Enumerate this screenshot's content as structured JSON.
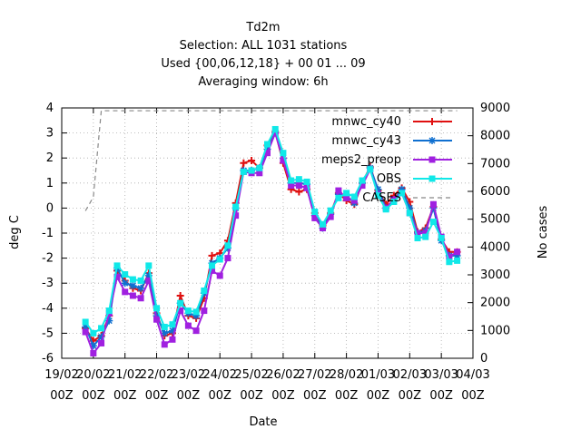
{
  "chart_data": {
    "type": "line",
    "title_lines": [
      "Td2m",
      "Selection: ALL    1031 stations",
      "Used {00,06,12,18} + 00 01 ... 09",
      "Averaging window:  6h"
    ],
    "xlabel": "Date",
    "ylabel": "deg C",
    "y2label": "No cases",
    "ylim": [
      -6,
      4
    ],
    "y2lim": [
      0,
      9000
    ],
    "y_ticks": [
      -6,
      -5,
      -4,
      -3,
      -2,
      -1,
      0,
      1,
      2,
      3,
      4
    ],
    "y2_ticks": [
      0,
      1000,
      2000,
      3000,
      4000,
      5000,
      6000,
      7000,
      8000,
      9000
    ],
    "x_ticks": [
      {
        "day": 0,
        "line1": "19/02",
        "line2": "00Z"
      },
      {
        "day": 1,
        "line1": "20/02",
        "line2": "00Z"
      },
      {
        "day": 2,
        "line1": "21/02",
        "line2": "00Z"
      },
      {
        "day": 3,
        "line1": "22/02",
        "line2": "00Z"
      },
      {
        "day": 4,
        "line1": "23/02",
        "line2": "00Z"
      },
      {
        "day": 5,
        "line1": "24/02",
        "line2": "00Z"
      },
      {
        "day": 6,
        "line1": "25/02",
        "line2": "00Z"
      },
      {
        "day": 7,
        "line1": "26/02",
        "line2": "00Z"
      },
      {
        "day": 8,
        "line1": "27/02",
        "line2": "00Z"
      },
      {
        "day": 9,
        "line1": "28/02",
        "line2": "00Z"
      },
      {
        "day": 10,
        "line1": "01/03",
        "line2": "00Z"
      },
      {
        "day": 11,
        "line1": "02/03",
        "line2": "00Z"
      },
      {
        "day": 12,
        "line1": "03/03",
        "line2": "00Z"
      },
      {
        "day": 13,
        "line1": "04/03",
        "line2": "00Z"
      }
    ],
    "x_day_range": [
      0,
      13
    ],
    "grid": true,
    "legend_position": "top-right",
    "x": [
      0.75,
      1.0,
      1.25,
      1.5,
      1.75,
      2.0,
      2.25,
      2.5,
      2.75,
      3.0,
      3.25,
      3.5,
      3.75,
      4.0,
      4.25,
      4.5,
      4.75,
      5.0,
      5.25,
      5.5,
      5.75,
      6.0,
      6.25,
      6.5,
      6.75,
      7.0,
      7.25,
      7.5,
      7.75,
      8.0,
      8.25,
      8.5,
      8.75,
      9.0,
      9.25,
      9.5,
      9.75,
      10.0,
      10.25,
      10.5,
      10.75,
      11.0,
      11.25,
      11.5,
      11.75,
      12.0,
      12.25,
      12.5
    ],
    "series": [
      {
        "name": "mnwc_cy40",
        "color": "#e01010",
        "marker": "plus",
        "values": [
          -4.8,
          -5.3,
          -5.1,
          -4.3,
          -2.5,
          -2.9,
          -3.2,
          -3.3,
          -2.6,
          -4.2,
          -5.1,
          -5.0,
          -3.5,
          -4.3,
          -4.4,
          -3.6,
          -1.9,
          -1.8,
          -1.3,
          0.2,
          1.8,
          1.9,
          1.6,
          2.5,
          3.05,
          1.8,
          0.75,
          0.65,
          0.75,
          -0.2,
          -0.7,
          -0.2,
          0.6,
          0.3,
          0.15,
          1.0,
          1.65,
          0.7,
          0.15,
          0.5,
          0.8,
          0.25,
          -0.95,
          -0.8,
          0.05,
          -1.25,
          -1.75,
          -1.75
        ]
      },
      {
        "name": "mnwc_cy43",
        "color": "#1070d0",
        "marker": "star",
        "values": [
          -4.75,
          -5.5,
          -5.15,
          -4.5,
          -2.4,
          -3.0,
          -3.1,
          -3.2,
          -2.7,
          -4.3,
          -5.0,
          -4.9,
          -3.8,
          -4.2,
          -4.3,
          -3.4,
          -2.2,
          -2.0,
          -1.6,
          0.0,
          1.5,
          1.5,
          1.6,
          2.35,
          3.0,
          2.0,
          1.0,
          1.0,
          0.95,
          -0.3,
          -0.8,
          -0.25,
          0.55,
          0.5,
          0.2,
          1.0,
          1.6,
          0.75,
          0.0,
          0.3,
          0.75,
          0.0,
          -1.0,
          -0.9,
          0.0,
          -1.3,
          -1.9,
          -1.9
        ]
      },
      {
        "name": "meps2_preop",
        "color": "#a020e0",
        "marker": "square",
        "values": [
          -4.95,
          -5.8,
          -5.4,
          -4.2,
          -2.75,
          -3.35,
          -3.5,
          -3.6,
          -2.9,
          -4.45,
          -5.45,
          -5.25,
          -4.1,
          -4.7,
          -4.9,
          -4.1,
          -2.5,
          -2.7,
          -2.0,
          -0.3,
          1.45,
          1.4,
          1.4,
          2.2,
          3.0,
          1.9,
          0.9,
          0.9,
          0.8,
          -0.4,
          -0.8,
          -0.35,
          0.7,
          0.4,
          0.3,
          0.9,
          1.55,
          0.55,
          0.0,
          0.35,
          0.6,
          -0.2,
          -1.0,
          -1.0,
          0.15,
          -1.15,
          -1.95,
          -1.75
        ]
      },
      {
        "name": "OBS",
        "color": "#10e8e8",
        "marker": "square",
        "values": [
          -4.55,
          -5.0,
          -4.8,
          -4.1,
          -2.3,
          -2.65,
          -2.85,
          -2.9,
          -2.3,
          -4.0,
          -4.75,
          -4.65,
          -3.8,
          -4.1,
          -4.15,
          -3.3,
          -2.3,
          -2.05,
          -1.5,
          0.05,
          1.45,
          1.5,
          1.6,
          2.55,
          3.15,
          2.2,
          1.1,
          1.15,
          1.05,
          -0.15,
          -0.65,
          -0.1,
          0.4,
          0.6,
          0.45,
          1.1,
          1.55,
          0.5,
          -0.05,
          0.25,
          0.6,
          -0.2,
          -1.2,
          -1.15,
          -0.55,
          -1.2,
          -2.15,
          -2.1
        ]
      }
    ],
    "cases_series": {
      "name": "CASES",
      "color": "#888888",
      "style": "dashed",
      "x": [
        0.75,
        1.0,
        1.25,
        12.25,
        12.5
      ],
      "values": [
        5300,
        5800,
        8900,
        8900,
        8900
      ]
    }
  }
}
